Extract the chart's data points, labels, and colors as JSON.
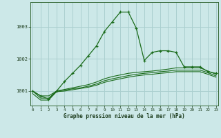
{
  "xlabel": "Graphe pression niveau de la mer (hPa)",
  "bg_color": "#cce8e8",
  "grid_color": "#aacfcf",
  "line_color": "#1a6b1a",
  "hours": [
    0,
    1,
    2,
    3,
    4,
    5,
    6,
    7,
    8,
    9,
    10,
    11,
    12,
    13,
    14,
    15,
    16,
    17,
    18,
    19,
    20,
    21,
    22,
    23
  ],
  "main_line": [
    1001.0,
    1000.85,
    1000.75,
    1001.0,
    1001.3,
    1001.55,
    1001.8,
    1002.1,
    1002.4,
    1002.85,
    1003.15,
    1003.45,
    1003.45,
    1002.95,
    1001.95,
    1002.2,
    1002.25,
    1002.25,
    1002.2,
    1001.75,
    1001.75,
    1001.75,
    1001.6,
    1001.55
  ],
  "flat_line1": [
    1001.0,
    1000.85,
    1000.85,
    1001.0,
    1001.05,
    1001.1,
    1001.15,
    1001.2,
    1001.28,
    1001.38,
    1001.45,
    1001.5,
    1001.55,
    1001.58,
    1001.6,
    1001.62,
    1001.65,
    1001.68,
    1001.72,
    1001.72,
    1001.72,
    1001.72,
    1001.62,
    1001.52
  ],
  "flat_line2": [
    1001.0,
    1000.78,
    1000.78,
    1001.0,
    1001.03,
    1001.07,
    1001.1,
    1001.15,
    1001.22,
    1001.32,
    1001.38,
    1001.43,
    1001.48,
    1001.52,
    1001.55,
    1001.57,
    1001.6,
    1001.62,
    1001.65,
    1001.65,
    1001.65,
    1001.65,
    1001.57,
    1001.47
  ],
  "flat_line3": [
    1000.92,
    1000.72,
    1000.72,
    1000.98,
    1001.0,
    1001.04,
    1001.08,
    1001.12,
    1001.18,
    1001.27,
    1001.33,
    1001.38,
    1001.43,
    1001.47,
    1001.5,
    1001.52,
    1001.55,
    1001.57,
    1001.6,
    1001.6,
    1001.6,
    1001.6,
    1001.52,
    1001.43
  ],
  "ylim": [
    1000.55,
    1003.75
  ],
  "yticks": [
    1001,
    1002,
    1003
  ],
  "xticks": [
    0,
    1,
    2,
    3,
    4,
    5,
    6,
    7,
    8,
    9,
    10,
    11,
    12,
    13,
    14,
    15,
    16,
    17,
    18,
    19,
    20,
    21,
    22,
    23
  ]
}
